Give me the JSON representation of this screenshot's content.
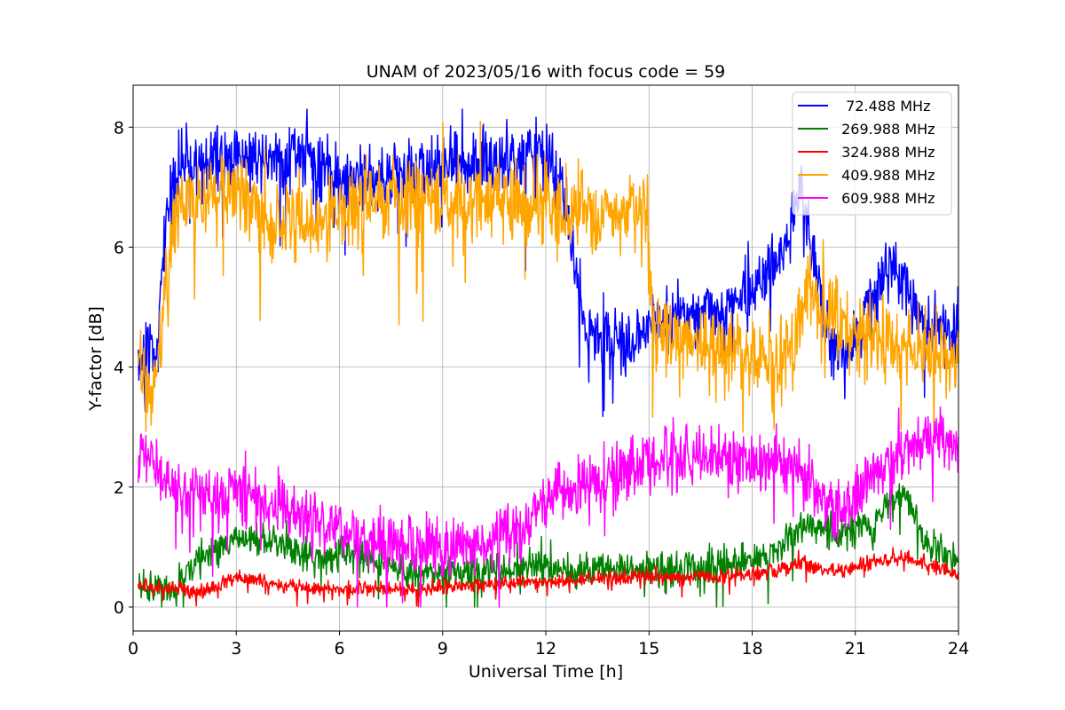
{
  "chart_data": {
    "type": "line",
    "title": "UNAM of 2023/05/16 with focus code = 59",
    "xlabel": "Universal Time [h]",
    "ylabel": "Y-factor [dB]",
    "xlim": [
      0,
      24
    ],
    "ylim": [
      -0.4,
      8.7
    ],
    "xticks": [
      0,
      3,
      6,
      9,
      12,
      15,
      18,
      21,
      24
    ],
    "xtick_labels": [
      "0",
      "3",
      "6",
      "9",
      "12",
      "15",
      "18",
      "21",
      "24"
    ],
    "yticks": [
      0,
      2,
      4,
      6,
      8
    ],
    "ytick_labels": [
      "0",
      "2",
      "4",
      "6",
      "8"
    ],
    "grid": true,
    "legend_position": "top-right",
    "series": [
      {
        "name": "  72.488 MHz",
        "color": "#0000ff",
        "noise": 0.45,
        "x": [
          0.15,
          0.5,
          0.7,
          0.9,
          1.2,
          1.5,
          2.0,
          3.0,
          4.0,
          5.0,
          6.0,
          7.0,
          8.0,
          9.0,
          10.0,
          11.0,
          11.8,
          12.5,
          12.9,
          13.2,
          13.6,
          14.0,
          14.5,
          15.0,
          16.0,
          17.0,
          18.0,
          18.7,
          19.2,
          19.4,
          19.6,
          20.0,
          20.3,
          20.7,
          21.0,
          21.5,
          22.0,
          22.5,
          23.0,
          24.0
        ],
        "y": [
          4.2,
          4.3,
          4.0,
          6.4,
          7.2,
          7.4,
          7.4,
          7.5,
          7.55,
          7.5,
          7.2,
          7.1,
          7.3,
          7.4,
          7.4,
          7.4,
          7.6,
          7.0,
          5.5,
          4.6,
          4.5,
          4.6,
          4.3,
          4.7,
          4.9,
          5.0,
          5.3,
          5.7,
          6.3,
          7.2,
          6.4,
          5.2,
          4.4,
          4.2,
          4.5,
          5.2,
          5.6,
          5.3,
          4.7,
          4.6
        ]
      },
      {
        "name": " 269.988 MHz",
        "color": "#008000",
        "noise": 0.22,
        "x": [
          0.15,
          0.8,
          1.2,
          1.5,
          2.0,
          2.5,
          3.0,
          3.5,
          4.0,
          4.5,
          5.0,
          5.5,
          6.0,
          6.5,
          7.0,
          8.0,
          9.0,
          10.0,
          11.0,
          11.5,
          12.0,
          12.5,
          13.0,
          14.0,
          15.0,
          16.0,
          17.0,
          18.0,
          18.5,
          19.0,
          19.5,
          20.0,
          20.5,
          21.0,
          21.5,
          22.0,
          22.5,
          23.0,
          24.0
        ],
        "y": [
          0.35,
          0.3,
          0.25,
          0.55,
          0.85,
          0.95,
          1.15,
          1.15,
          1.1,
          1.0,
          0.85,
          0.8,
          0.95,
          0.9,
          0.75,
          0.6,
          0.55,
          0.6,
          0.65,
          0.7,
          0.65,
          0.6,
          0.6,
          0.65,
          0.65,
          0.7,
          0.7,
          0.75,
          0.9,
          1.1,
          1.4,
          1.3,
          1.2,
          1.3,
          1.3,
          1.8,
          1.9,
          1.1,
          0.75
        ]
      },
      {
        "name": " 324.988 MHz",
        "color": "#ff0000",
        "noise": 0.1,
        "x": [
          0.15,
          1.0,
          2.0,
          2.5,
          3.0,
          4.0,
          5.0,
          6.0,
          7.0,
          8.0,
          9.0,
          10.0,
          11.0,
          12.0,
          13.0,
          14.0,
          15.0,
          16.0,
          17.0,
          18.0,
          19.0,
          19.5,
          20.0,
          20.5,
          21.0,
          21.5,
          22.0,
          22.5,
          23.0,
          24.0
        ],
        "y": [
          0.35,
          0.3,
          0.25,
          0.35,
          0.5,
          0.4,
          0.33,
          0.3,
          0.3,
          0.3,
          0.33,
          0.37,
          0.38,
          0.42,
          0.45,
          0.5,
          0.5,
          0.5,
          0.5,
          0.55,
          0.65,
          0.75,
          0.65,
          0.6,
          0.65,
          0.75,
          0.8,
          0.85,
          0.7,
          0.55
        ]
      },
      {
        "name": " 409.988 MHz",
        "color": "#ffa500",
        "noise": 0.55,
        "x": [
          0.15,
          0.5,
          0.8,
          1.0,
          1.3,
          2.0,
          3.0,
          4.0,
          5.0,
          6.0,
          7.0,
          8.0,
          9.0,
          10.0,
          11.0,
          11.5,
          12.0,
          12.3,
          12.7,
          13.0,
          13.5,
          14.0,
          14.5,
          14.95,
          15.1,
          16.0,
          17.0,
          18.0,
          19.0,
          19.4,
          19.6,
          20.0,
          20.5,
          21.0,
          22.0,
          23.0,
          24.0
        ],
        "y": [
          4.0,
          3.6,
          4.2,
          5.8,
          6.7,
          6.8,
          6.9,
          6.5,
          6.4,
          6.5,
          6.7,
          6.8,
          6.8,
          6.8,
          6.8,
          6.6,
          6.8,
          6.6,
          6.6,
          6.6,
          6.5,
          6.6,
          6.7,
          6.6,
          4.6,
          4.4,
          4.3,
          4.2,
          4.1,
          4.8,
          5.3,
          5.0,
          4.8,
          4.6,
          4.4,
          4.3,
          4.1
        ]
      },
      {
        "name": " 609.988 MHz",
        "color": "#ff00ff",
        "noise": 0.4,
        "x": [
          0.15,
          0.5,
          1.0,
          1.5,
          2.0,
          3.0,
          4.0,
          5.0,
          6.0,
          7.0,
          8.0,
          9.0,
          10.0,
          11.0,
          11.5,
          12.0,
          12.5,
          13.0,
          13.5,
          14.0,
          15.0,
          16.0,
          17.0,
          18.0,
          19.0,
          19.5,
          20.0,
          20.5,
          21.0,
          21.5,
          22.0,
          22.5,
          23.0,
          23.5,
          24.0
        ],
        "y": [
          2.5,
          2.4,
          2.1,
          2.0,
          1.8,
          1.9,
          1.7,
          1.5,
          1.3,
          1.1,
          1.0,
          1.0,
          1.0,
          1.2,
          1.4,
          1.8,
          2.0,
          2.0,
          2.1,
          2.2,
          2.4,
          2.5,
          2.5,
          2.4,
          2.4,
          2.2,
          1.9,
          1.6,
          1.8,
          2.2,
          2.5,
          2.6,
          2.8,
          2.8,
          2.6
        ]
      }
    ]
  }
}
